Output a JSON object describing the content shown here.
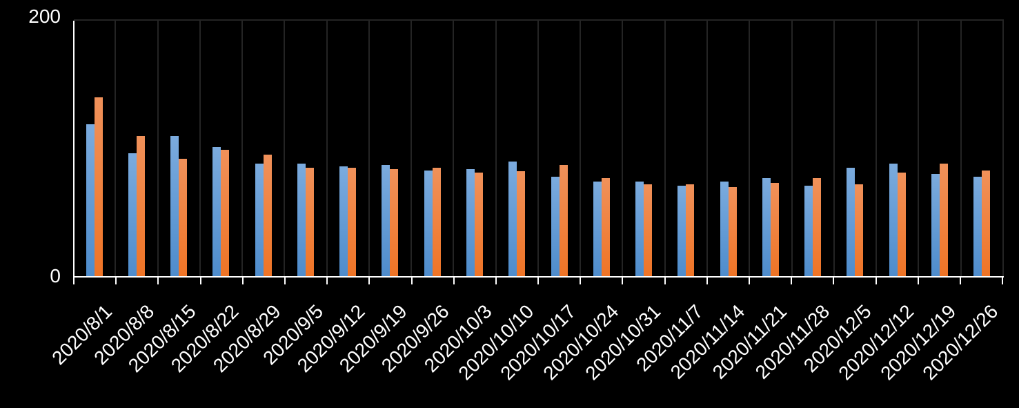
{
  "chart_data": {
    "type": "bar",
    "title": "",
    "xlabel": "",
    "ylabel": "",
    "ylim": [
      0,
      200
    ],
    "ytick_labels": [
      "0",
      "200"
    ],
    "grid": "vertical-category-gridlines",
    "legend": "none",
    "background_color": "#000000",
    "gridline_color": "#242424",
    "axis_color": "#ffffff",
    "text_color": "#ffffff",
    "categories": [
      "2020/8/1",
      "2020/8/8",
      "2020/8/15",
      "2020/8/22",
      "2020/8/29",
      "2020/9/5",
      "2020/9/12",
      "2020/9/19",
      "2020/9/26",
      "2020/10/3",
      "2020/10/10",
      "2020/10/17",
      "2020/10/24",
      "2020/10/31",
      "2020/11/7",
      "2020/11/14",
      "2020/11/21",
      "2020/11/28",
      "2020/12/5",
      "2020/12/12",
      "2020/12/19",
      "2020/12/26"
    ],
    "series": [
      {
        "name": "blue",
        "color_top": "#7BABDE",
        "color_bottom": "#4E8CCC",
        "values": [
          119,
          96,
          110,
          101,
          88,
          88,
          86,
          87,
          83,
          84,
          90,
          78,
          74,
          74,
          71,
          74,
          77,
          71,
          85,
          88,
          80,
          78
        ]
      },
      {
        "name": "orange",
        "color_top": "#F0915A",
        "color_bottom": "#EF7426",
        "values": [
          140,
          110,
          92,
          99,
          95,
          85,
          85,
          84,
          85,
          81,
          82,
          87,
          77,
          72,
          72,
          70,
          73,
          77,
          72,
          81,
          88,
          83
        ]
      }
    ]
  }
}
